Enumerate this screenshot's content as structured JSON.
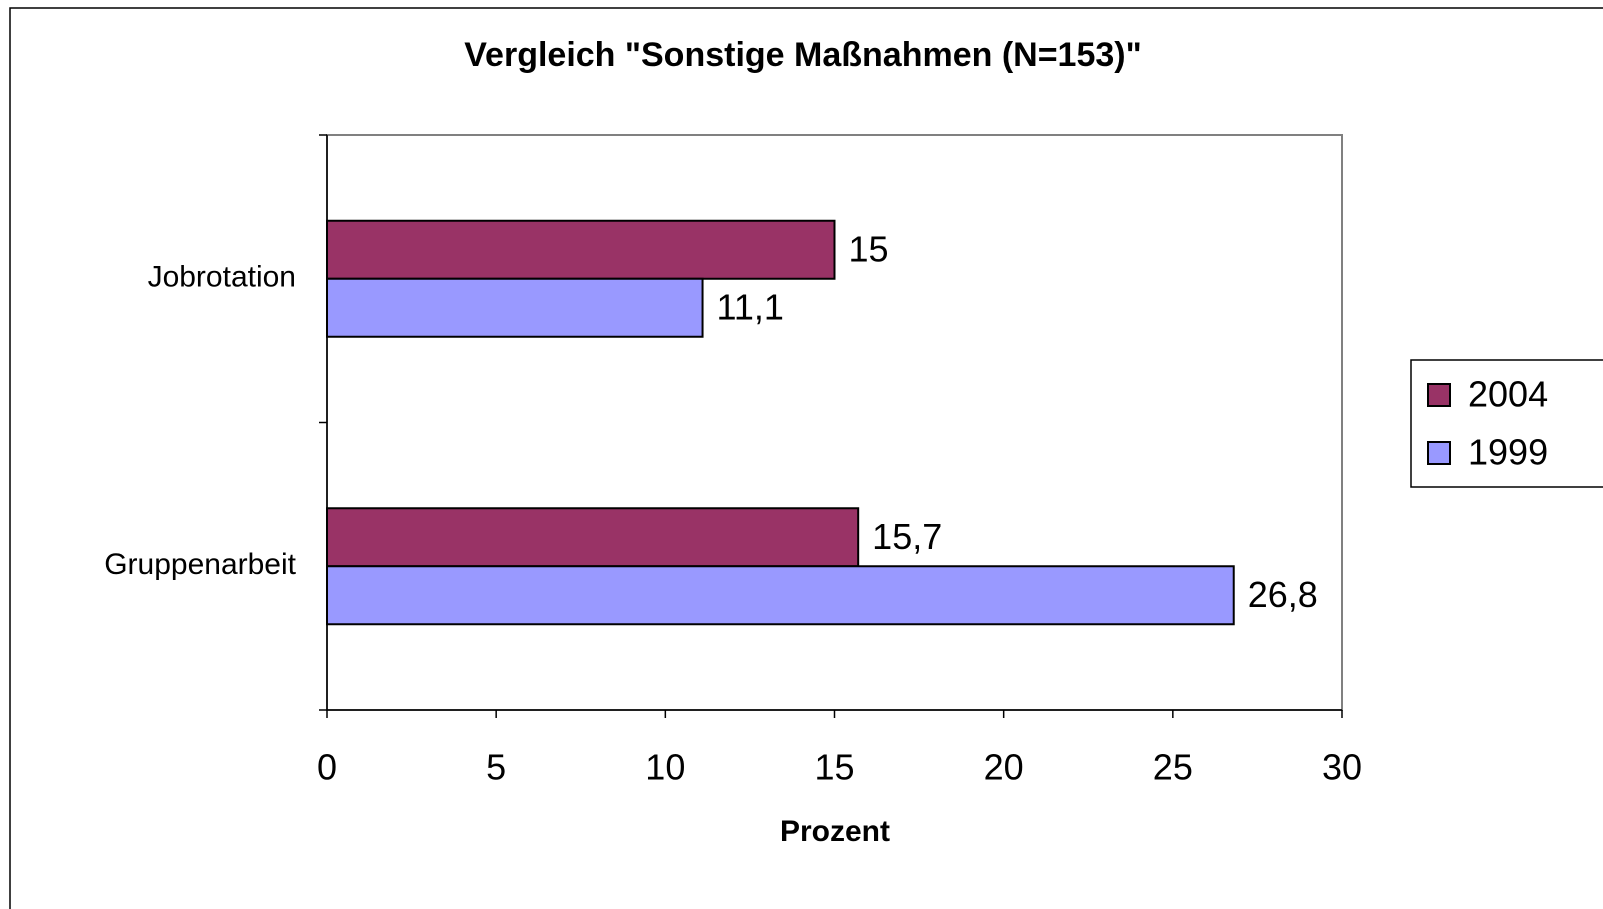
{
  "chart_data": {
    "type": "bar",
    "orientation": "horizontal",
    "title": "Vergleich \"Sonstige Maßnahmen (N=153)\"",
    "x_label": "Prozent",
    "categories": [
      "Jobrotation",
      "Gruppenarbeit"
    ],
    "series": [
      {
        "name": "2004",
        "color": "#993366",
        "values": [
          15,
          15.7
        ],
        "value_labels": [
          "15",
          "15,7"
        ]
      },
      {
        "name": "1999",
        "color": "#9999ff",
        "values": [
          11.1,
          26.8
        ],
        "value_labels": [
          "11,1",
          "26,8"
        ]
      }
    ],
    "xlim": [
      0,
      30
    ],
    "xticks": [
      0,
      5,
      10,
      15,
      20,
      25,
      30
    ],
    "grid": false,
    "legend": "right"
  }
}
